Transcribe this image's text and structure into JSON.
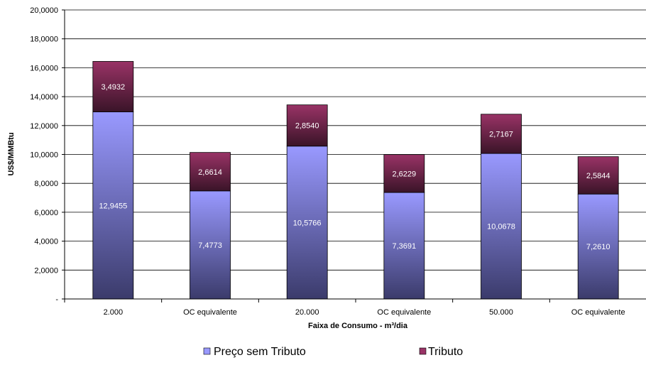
{
  "chart_data": {
    "type": "bar",
    "stacked": true,
    "categories": [
      "2.000",
      "OC equivalente",
      "20.000",
      "OC equivalente",
      "50.000",
      "OC equivalente"
    ],
    "series": [
      {
        "name": "Preço sem Tributo",
        "values": [
          12.9455,
          7.4773,
          10.5766,
          7.3691,
          10.0678,
          7.261
        ],
        "labels": [
          "12,9455",
          "7,4773",
          "10,5766",
          "7,3691",
          "10,0678",
          "7,2610"
        ],
        "color_top": "#9999ff",
        "color_bottom": "#3b3b6b"
      },
      {
        "name": "Tributo",
        "values": [
          3.4932,
          2.6614,
          2.854,
          2.6229,
          2.7167,
          2.5844
        ],
        "labels": [
          "3,4932",
          "2,6614",
          "2,8540",
          "2,6229",
          "2,7167",
          "2,5844"
        ],
        "color_top": "#993366",
        "color_bottom": "#3a1428"
      }
    ],
    "xlabel": "Faixa de Consumo - m³/dia",
    "ylabel": "US$/MMBtu",
    "ylim": [
      0,
      20
    ],
    "yticks": [
      0,
      2,
      4,
      6,
      8,
      10,
      12,
      14,
      16,
      18,
      20
    ],
    "ytick_labels": [
      "-",
      "2,0000",
      "4,0000",
      "6,0000",
      "8,0000",
      "10,0000",
      "12,0000",
      "14,0000",
      "16,0000",
      "18,0000",
      "20,0000"
    ],
    "grid": true,
    "legend_position": "bottom"
  }
}
